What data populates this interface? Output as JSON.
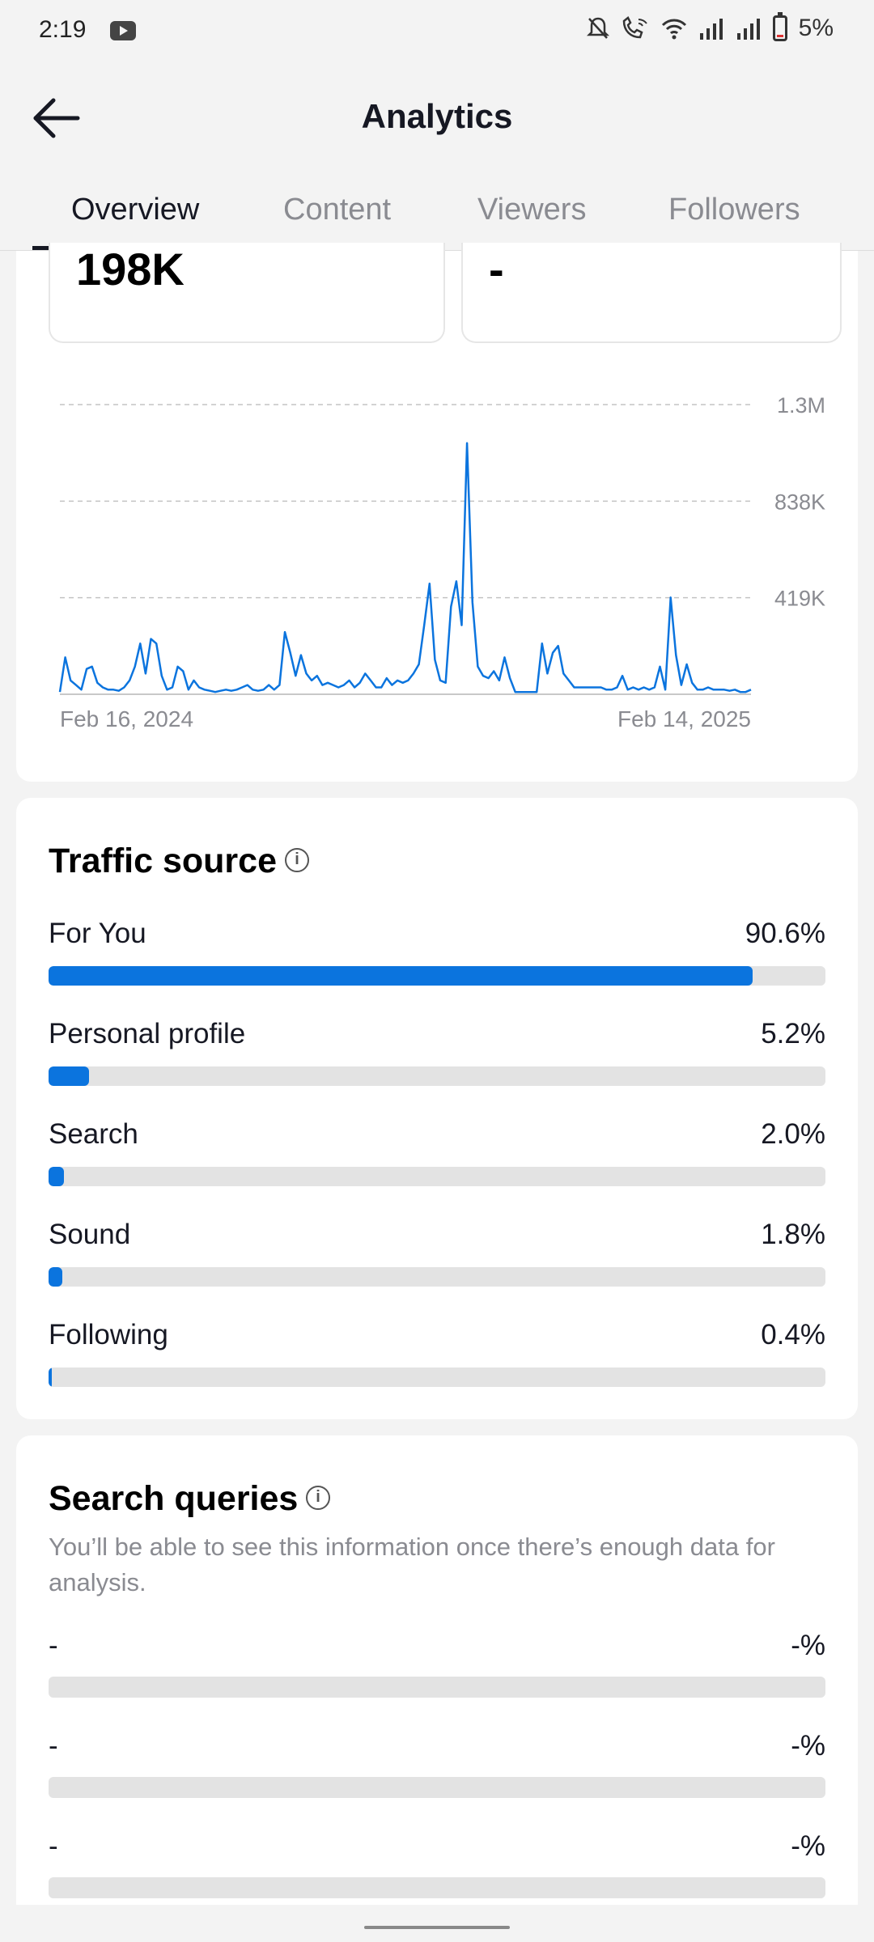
{
  "status_bar": {
    "time": "2:19",
    "battery": "5%",
    "icons": [
      "youtube-icon",
      "bell-off-icon",
      "wifi-call-icon",
      "wifi-icon",
      "signal-icon",
      "signal-icon",
      "battery-icon"
    ]
  },
  "header": {
    "title": "Analytics",
    "back_icon": "arrow-left-icon"
  },
  "tabs": [
    {
      "label": "Overview",
      "active": true
    },
    {
      "label": "Content",
      "active": false
    },
    {
      "label": "Viewers",
      "active": false
    },
    {
      "label": "Followers",
      "active": false
    }
  ],
  "overview": {
    "metrics": [
      {
        "value": "198K"
      },
      {
        "value": "-"
      }
    ]
  },
  "chart_data": {
    "type": "line",
    "title": "",
    "x_start_label": "Feb 16, 2024",
    "x_end_label": "Feb 14, 2025",
    "y_ticks": [
      "419K",
      "838K",
      "1.3M"
    ],
    "y_tick_values": [
      419000,
      838000,
      1257000
    ],
    "ylim": [
      0,
      1257000
    ],
    "grid": true,
    "series": [
      {
        "color": "#0b74de",
        "values": [
          10000,
          160000,
          60000,
          40000,
          20000,
          110000,
          120000,
          50000,
          30000,
          20000,
          20000,
          15000,
          30000,
          60000,
          120000,
          220000,
          90000,
          240000,
          220000,
          80000,
          20000,
          30000,
          120000,
          100000,
          20000,
          60000,
          30000,
          20000,
          15000,
          10000,
          15000,
          20000,
          15000,
          20000,
          30000,
          40000,
          20000,
          15000,
          20000,
          40000,
          20000,
          40000,
          270000,
          180000,
          80000,
          170000,
          90000,
          60000,
          80000,
          40000,
          50000,
          40000,
          30000,
          40000,
          60000,
          30000,
          50000,
          90000,
          60000,
          30000,
          30000,
          70000,
          40000,
          60000,
          50000,
          60000,
          90000,
          130000,
          300000,
          480000,
          150000,
          60000,
          50000,
          380000,
          490000,
          300000,
          1090000,
          400000,
          120000,
          80000,
          70000,
          100000,
          60000,
          160000,
          70000,
          10000,
          10000,
          10000,
          10000,
          10000,
          220000,
          90000,
          180000,
          210000,
          90000,
          60000,
          30000,
          30000,
          30000,
          30000,
          30000,
          30000,
          20000,
          20000,
          30000,
          80000,
          20000,
          30000,
          20000,
          30000,
          20000,
          30000,
          120000,
          20000,
          420000,
          170000,
          40000,
          130000,
          50000,
          20000,
          20000,
          30000,
          20000,
          20000,
          20000,
          15000,
          20000,
          10000,
          10000,
          20000
        ]
      }
    ]
  },
  "traffic_source": {
    "title": "Traffic source",
    "info_icon": "info-icon",
    "items": [
      {
        "label": "For You",
        "percent": "90.6%",
        "value": 90.6
      },
      {
        "label": "Personal profile",
        "percent": "5.2%",
        "value": 5.2
      },
      {
        "label": "Search",
        "percent": "2.0%",
        "value": 2.0
      },
      {
        "label": "Sound",
        "percent": "1.8%",
        "value": 1.8
      },
      {
        "label": "Following",
        "percent": "0.4%",
        "value": 0.4
      }
    ]
  },
  "search_queries": {
    "title": "Search queries",
    "info_icon": "info-icon",
    "description": "You’ll be able to see this information once there’s enough data for analysis.",
    "items": [
      {
        "label": "-",
        "percent": "-%"
      },
      {
        "label": "-",
        "percent": "-%"
      },
      {
        "label": "-",
        "percent": "-%"
      }
    ]
  }
}
